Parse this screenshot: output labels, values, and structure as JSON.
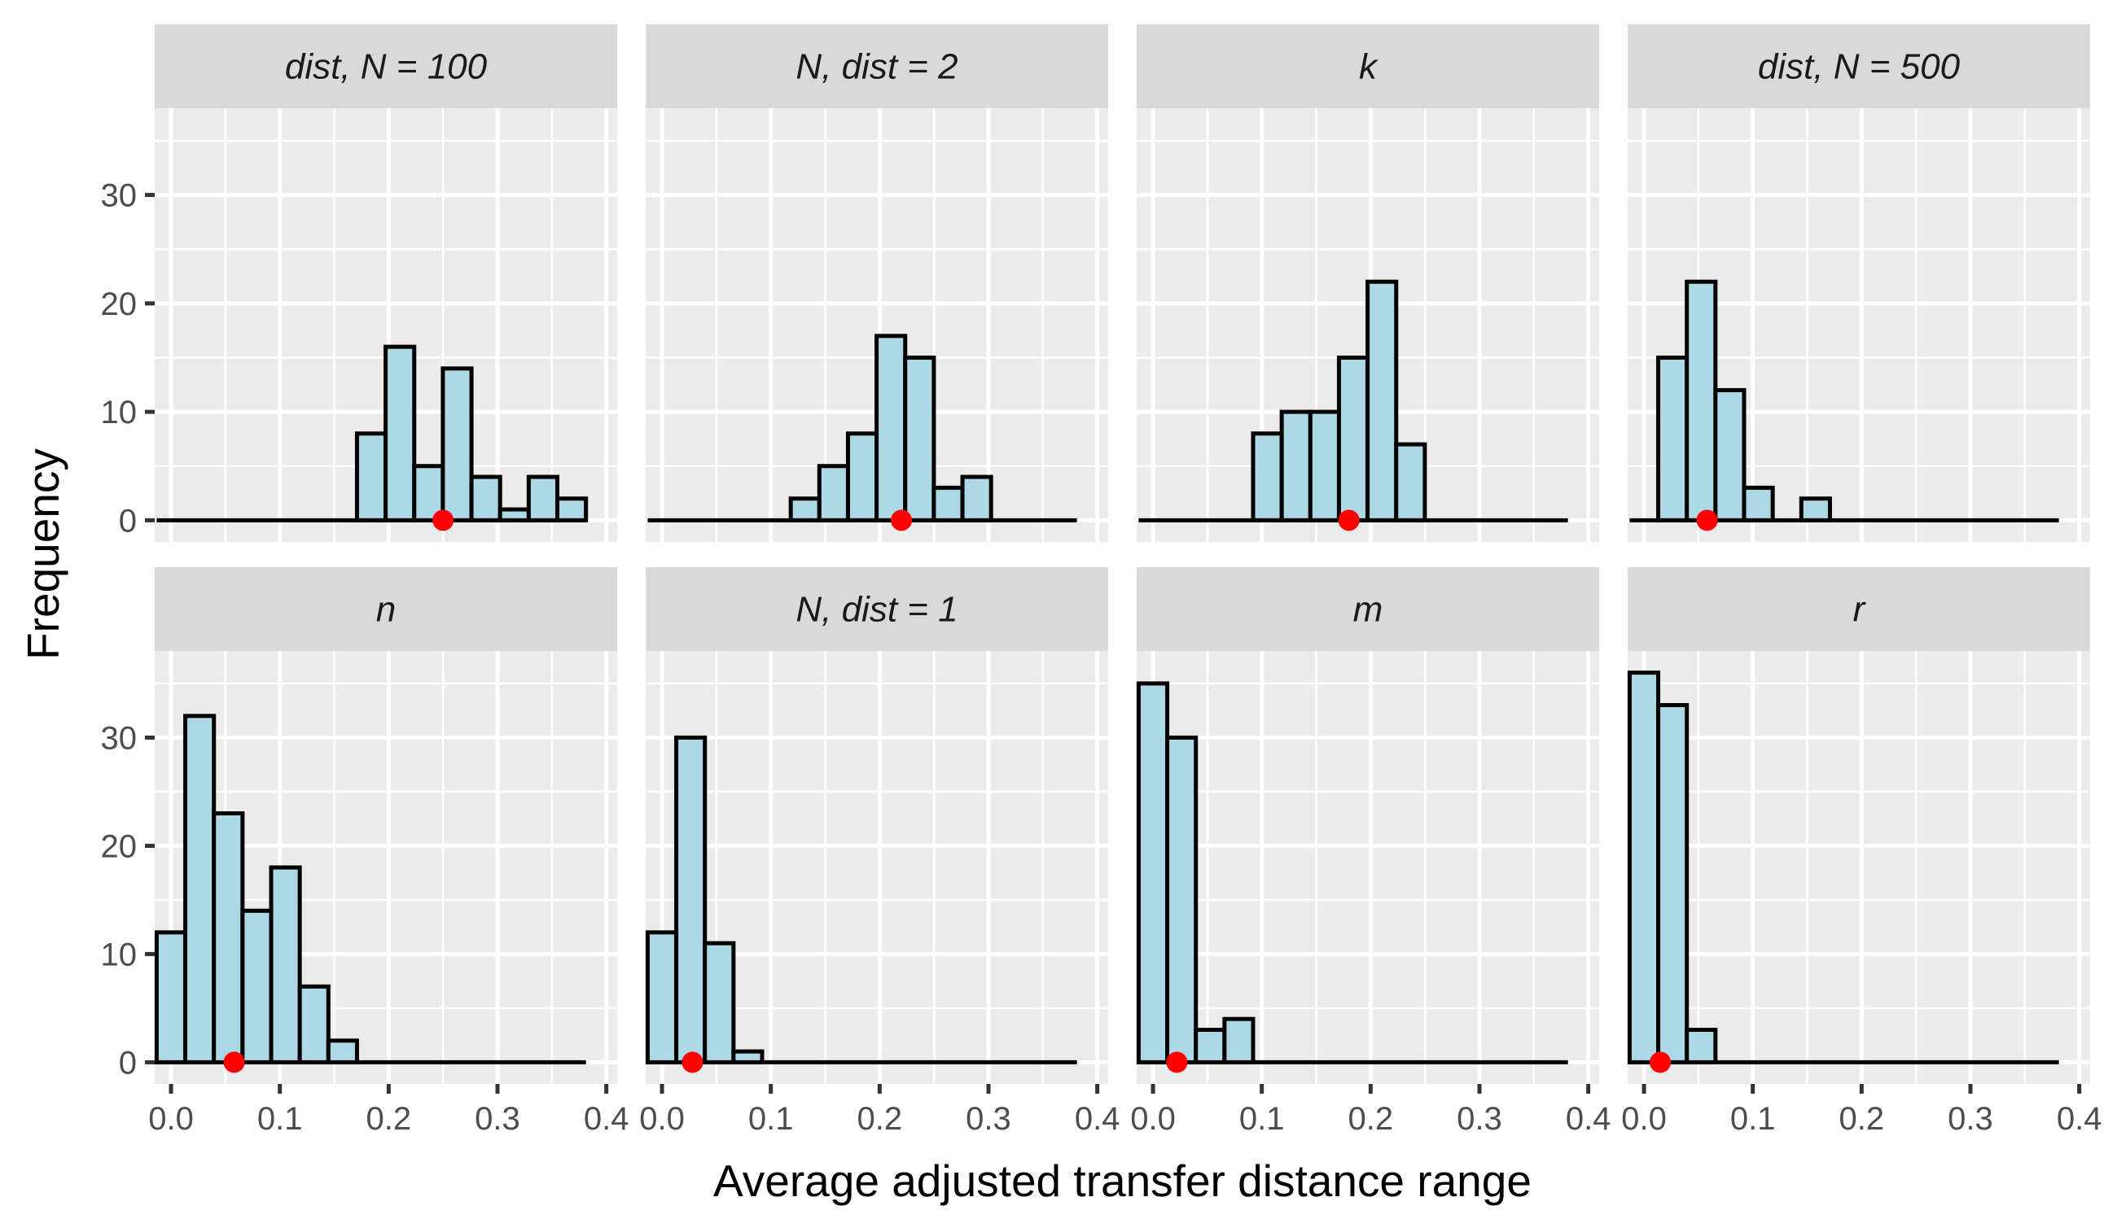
{
  "chart_data": {
    "type": "histogram",
    "xlabel": "Average adjusted transfer distance range",
    "ylabel": "Frequency",
    "xlim": [
      -0.015,
      0.41
    ],
    "ylim": [
      -2,
      38
    ],
    "x_ticks": [
      0.0,
      0.1,
      0.2,
      0.3,
      0.4
    ],
    "x_tick_labels": [
      "0.0",
      "0.1",
      "0.2",
      "0.3",
      "0.4"
    ],
    "y_ticks": [
      0,
      10,
      20,
      30
    ],
    "y_tick_labels": [
      "0",
      "10",
      "20",
      "30"
    ],
    "bin_width": 0.0263,
    "bin_start": -0.0132,
    "bin_count": 15,
    "fill_color": "#add8e6",
    "outline_color": "#000000",
    "marker_color": "#ff0000",
    "panel_background": "#ebebeb",
    "strip_background": "#d9d9d9",
    "panels": [
      {
        "title": "dist, N = 100",
        "counts": [
          0,
          0,
          0,
          0,
          0,
          0,
          0,
          8,
          16,
          5,
          14,
          4,
          1,
          4,
          2
        ],
        "marker": 0.25
      },
      {
        "title": "N, dist = 2",
        "counts": [
          0,
          0,
          0,
          0,
          0,
          2,
          5,
          8,
          17,
          15,
          3,
          4,
          0,
          0,
          0
        ],
        "marker": 0.22
      },
      {
        "title": "k",
        "counts": [
          0,
          0,
          0,
          0,
          8,
          10,
          10,
          15,
          22,
          7,
          0,
          0,
          0,
          0,
          0
        ],
        "marker": 0.18
      },
      {
        "title": "dist, N = 500",
        "counts": [
          0,
          15,
          22,
          12,
          3,
          0,
          2,
          0,
          0,
          0,
          0,
          0,
          0,
          0,
          0
        ],
        "marker": 0.058
      },
      {
        "title": "n",
        "counts": [
          12,
          32,
          23,
          14,
          18,
          7,
          2,
          0,
          0,
          0,
          0,
          0,
          0,
          0,
          0
        ],
        "marker": 0.058
      },
      {
        "title": "N, dist = 1",
        "counts": [
          12,
          30,
          11,
          1,
          0,
          0,
          0,
          0,
          0,
          0,
          0,
          0,
          0,
          0,
          0
        ],
        "marker": 0.028
      },
      {
        "title": "m",
        "counts": [
          35,
          30,
          3,
          4,
          0,
          0,
          0,
          0,
          0,
          0,
          0,
          0,
          0,
          0,
          0
        ],
        "marker": 0.022
      },
      {
        "title": "r",
        "counts": [
          36,
          33,
          3,
          0,
          0,
          0,
          0,
          0,
          0,
          0,
          0,
          0,
          0,
          0,
          0
        ],
        "marker": 0.015
      }
    ]
  }
}
